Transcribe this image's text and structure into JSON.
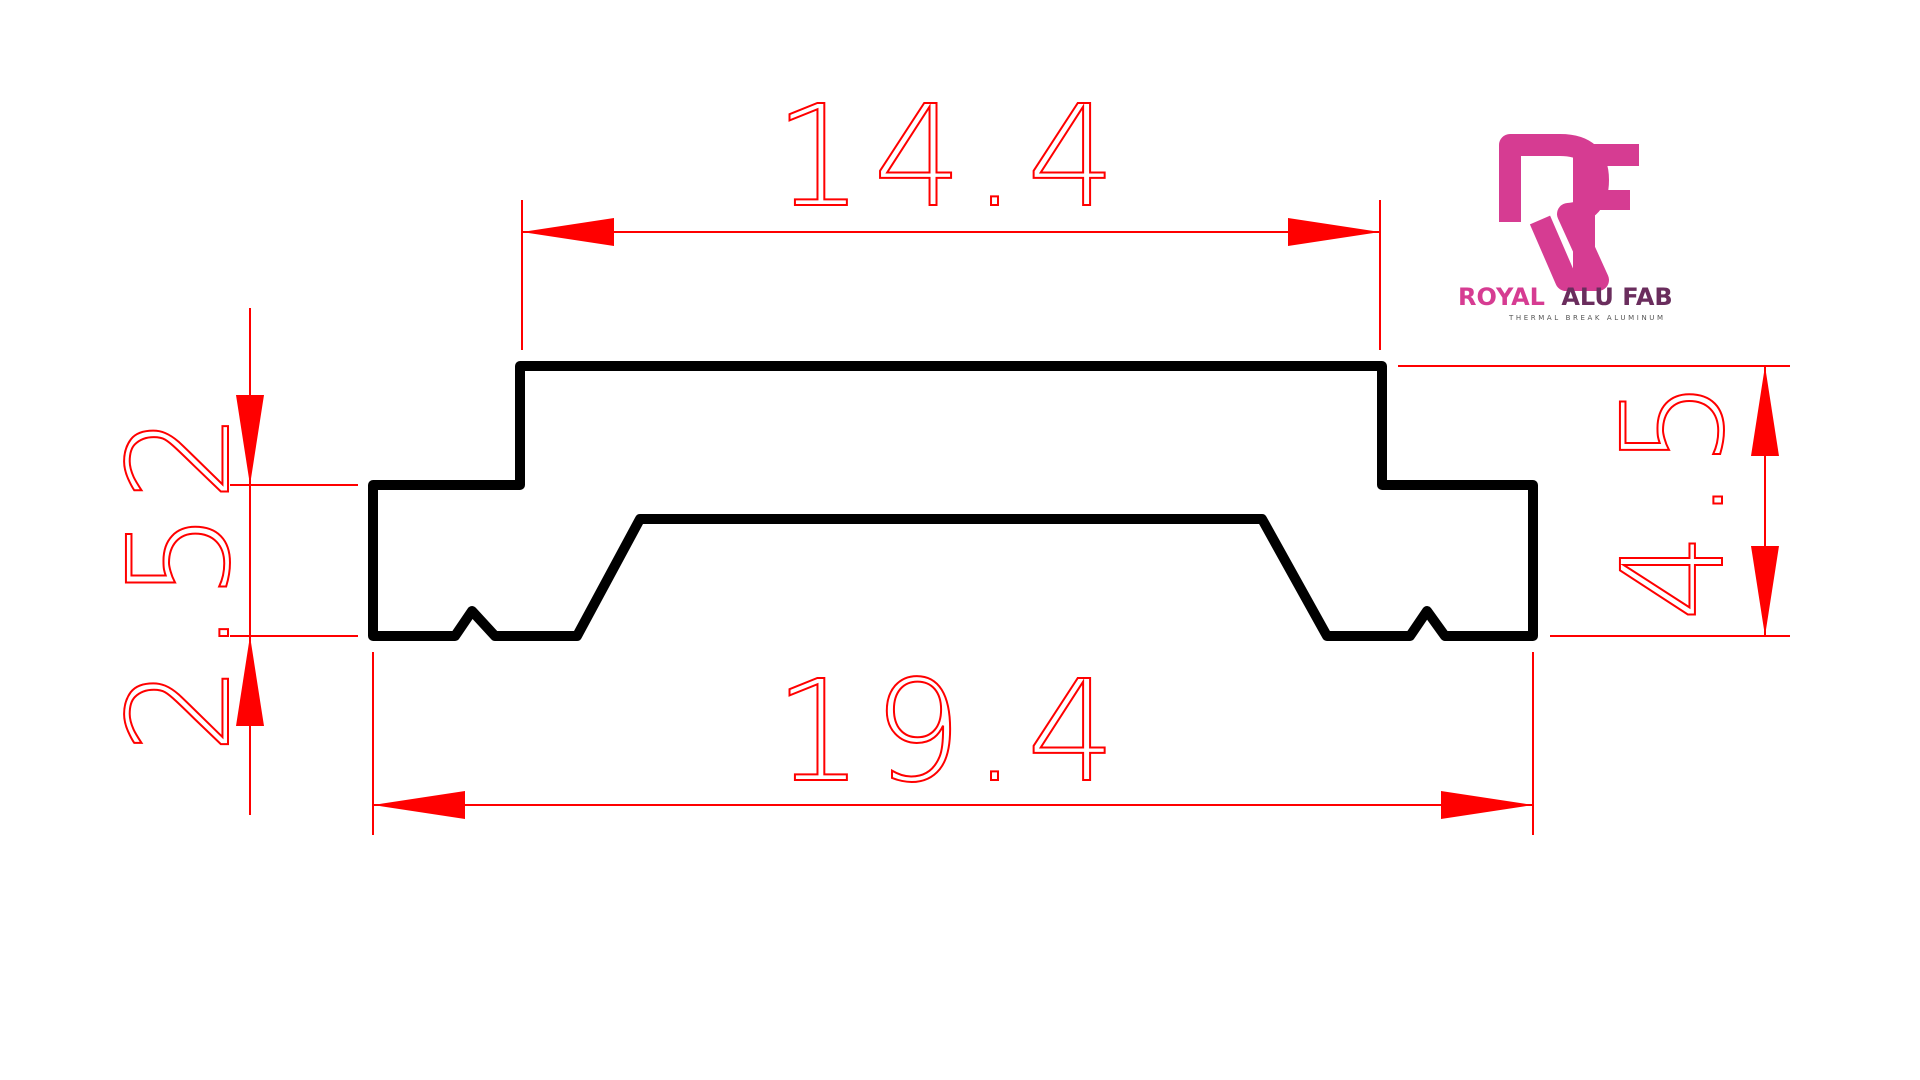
{
  "dimensions": {
    "top_width": "14.4",
    "bottom_width": "19.4",
    "left_height": "2.52",
    "right_height": "4.5"
  },
  "logo": {
    "monogram": "RF",
    "brand_part1": "ROYAL",
    "brand_part2": "ALU FAB",
    "tagline": "THERMAL BREAK ALUMINUM"
  },
  "colors": {
    "dimension": "#ff0000",
    "profile": "#000000",
    "brand_pink": "#d63c92",
    "brand_dark": "#6a2d5d"
  }
}
